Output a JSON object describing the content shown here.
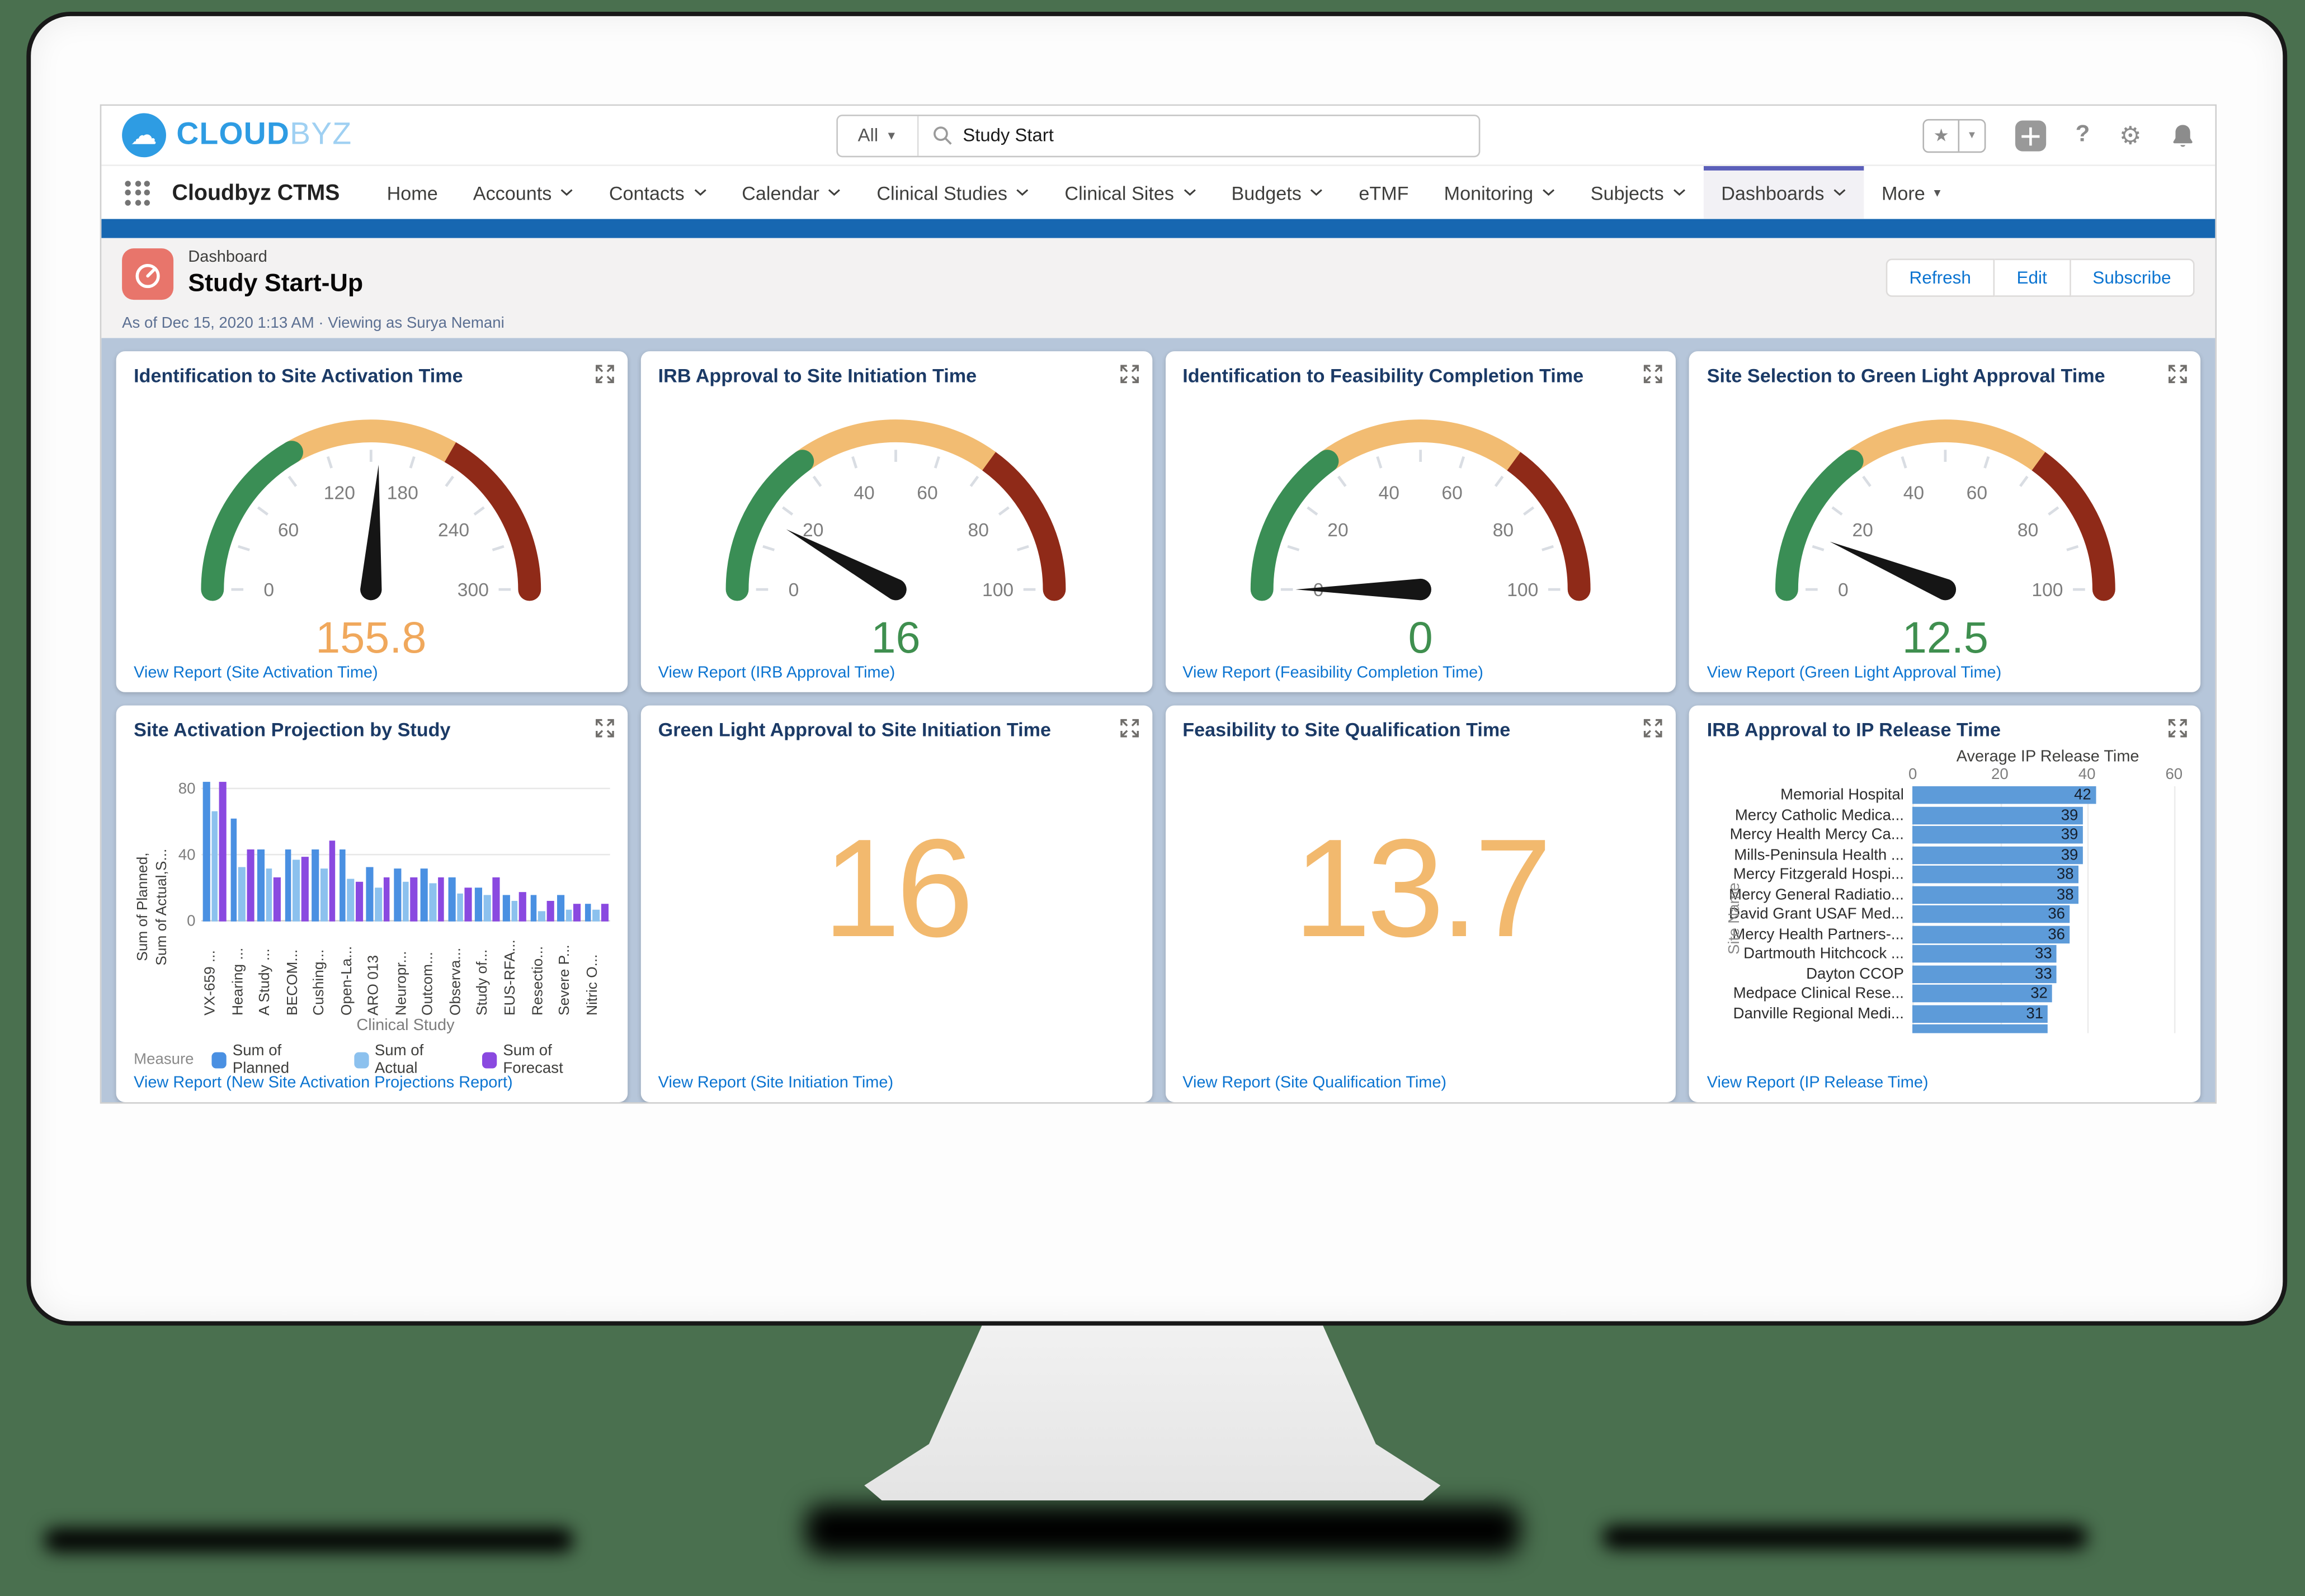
{
  "page_background": "#4a704f",
  "browser": {
    "logo": {
      "bold": "CLOUD",
      "light": "BYZ"
    },
    "search": {
      "scope": "All",
      "value": "Study Start"
    },
    "utility_icons": [
      "favorites-star",
      "add-plus",
      "help-question",
      "setup-gear",
      "notifications-bell"
    ],
    "app_name": "Cloudbyz CTMS",
    "tabs": [
      {
        "label": "Home"
      },
      {
        "label": "Accounts",
        "chevron": true
      },
      {
        "label": "Contacts",
        "chevron": true
      },
      {
        "label": "Calendar",
        "chevron": true
      },
      {
        "label": "Clinical Studies",
        "chevron": true
      },
      {
        "label": "Clinical Sites",
        "chevron": true
      },
      {
        "label": "Budgets",
        "chevron": true
      },
      {
        "label": "eTMF"
      },
      {
        "label": "Monitoring",
        "chevron": true
      },
      {
        "label": "Subjects",
        "chevron": true
      },
      {
        "label": "Dashboards",
        "chevron": true,
        "active": true
      },
      {
        "label": "More",
        "dropdown": true
      }
    ]
  },
  "dashboard_header": {
    "type_label": "Dashboard",
    "title": "Study Start-Up",
    "meta": "As of Dec 15, 2020 1:13 AM · Viewing as Surya Nemani",
    "buttons": [
      "Refresh",
      "Edit",
      "Subscribe"
    ]
  },
  "colors": {
    "brand_blue": "#1767b1",
    "active_tab_bar": "#5b5fb9",
    "dashboard_bg": "#b6c6da",
    "title_navy": "#1b3a66",
    "link_blue": "#0b74d1",
    "gauge_green": "#3a8e55",
    "gauge_orange": "#f2bc72",
    "gauge_red": "#8f2a18",
    "value_orange": "#f0a85c",
    "value_green": "#3f8f4f",
    "metric_orange": "#f2b96e",
    "bar_planned": "#4a90e2",
    "bar_actual": "#8cc1ee",
    "bar_forecast": "#8a49e0",
    "ip_bar_blue": "#5d9bd9"
  },
  "cards": {
    "gauges": [
      {
        "title": "Identification to Site Activation Time",
        "value": 155.8,
        "value_display": "155.8",
        "value_color": "#f0a85c",
        "max": 300,
        "tick_labels": [
          0,
          60,
          120,
          180,
          240,
          300
        ],
        "segments": [
          {
            "from": 0,
            "to": 100,
            "color": "#3a8e55"
          },
          {
            "from": 100,
            "to": 200,
            "color": "#f2bc72"
          },
          {
            "from": 200,
            "to": 300,
            "color": "#8f2a18"
          }
        ],
        "link": "View Report (Site Activation Time)"
      },
      {
        "title": "IRB Approval to Site Initiation Time",
        "value": 16,
        "value_display": "16",
        "value_color": "#3f8f4f",
        "max": 100,
        "tick_labels": [
          0,
          20,
          40,
          60,
          80,
          100
        ],
        "segments": [
          {
            "from": 0,
            "to": 30,
            "color": "#3a8e55"
          },
          {
            "from": 30,
            "to": 70,
            "color": "#f2bc72"
          },
          {
            "from": 70,
            "to": 100,
            "color": "#8f2a18"
          }
        ],
        "link": "View Report (IRB Approval Time)"
      },
      {
        "title": "Identification to Feasibility Completion Time",
        "value": 0,
        "value_display": "0",
        "value_color": "#3f8f4f",
        "max": 100,
        "tick_labels": [
          0,
          20,
          40,
          60,
          80,
          100
        ],
        "segments": [
          {
            "from": 0,
            "to": 30,
            "color": "#3a8e55"
          },
          {
            "from": 30,
            "to": 70,
            "color": "#f2bc72"
          },
          {
            "from": 70,
            "to": 100,
            "color": "#8f2a18"
          }
        ],
        "link": "View Report (Feasibility Completion Time)"
      },
      {
        "title": "Site Selection to Green Light Approval Time",
        "value": 12.5,
        "value_display": "12.5",
        "value_color": "#3f8f4f",
        "max": 100,
        "tick_labels": [
          0,
          20,
          40,
          60,
          80,
          100
        ],
        "segments": [
          {
            "from": 0,
            "to": 30,
            "color": "#3a8e55"
          },
          {
            "from": 30,
            "to": 70,
            "color": "#f2bc72"
          },
          {
            "from": 70,
            "to": 100,
            "color": "#8f2a18"
          }
        ],
        "link": "View Report (Green Light Approval Time)"
      }
    ],
    "projection": {
      "type": "bar",
      "title": "Site Activation Projection by Study",
      "y_label_line1": "Sum of Planned,",
      "y_label_line2": "Sum of Actual,S...",
      "y_ticks": [
        0,
        40,
        80
      ],
      "ymax": 85,
      "x_title": "Clinical Study",
      "legend_label": "Measure",
      "series": [
        {
          "name": "Sum of Planned",
          "color": "#4a90e2"
        },
        {
          "name": "Sum of Actual",
          "color": "#8cc1ee"
        },
        {
          "name": "Sum of Forecast",
          "color": "#8a49e0"
        }
      ],
      "groups": [
        {
          "label": "VX-659 ...",
          "values": [
            84,
            67,
            84
          ]
        },
        {
          "label": "Hearing ...",
          "values": [
            62,
            33,
            44
          ]
        },
        {
          "label": "A Study ...",
          "values": [
            44,
            32,
            27
          ]
        },
        {
          "label": "BECOM...",
          "values": [
            44,
            37,
            39
          ]
        },
        {
          "label": "Cushing...",
          "values": [
            44,
            32,
            49
          ]
        },
        {
          "label": "Open-La...",
          "values": [
            44,
            26,
            24
          ]
        },
        {
          "label": "ARO 013",
          "values": [
            33,
            21,
            27
          ]
        },
        {
          "label": "Neuropr...",
          "values": [
            32,
            24,
            27
          ]
        },
        {
          "label": "Outcom...",
          "values": [
            32,
            23,
            27
          ]
        },
        {
          "label": "Observa...",
          "values": [
            27,
            17,
            21
          ]
        },
        {
          "label": "Study of...",
          "values": [
            21,
            16,
            27
          ]
        },
        {
          "label": "EUS-RFA...",
          "values": [
            16,
            13,
            18
          ]
        },
        {
          "label": "Resectio...",
          "values": [
            16,
            6,
            13
          ]
        },
        {
          "label": "Severe P...",
          "values": [
            16,
            7,
            11
          ]
        },
        {
          "label": "Nitric O...",
          "values": [
            11,
            7,
            11
          ]
        }
      ],
      "link": "View Report (New Site Activation Projections Report)"
    },
    "metrics": [
      {
        "title": "Green Light Approval to Site Initiation Time",
        "value": "16",
        "link": "View Report (Site Initiation Time)"
      },
      {
        "title": "Feasibility to Site Qualification Time",
        "value": "13.7",
        "link": "View Report (Site Qualification Time)"
      }
    ],
    "ip_release": {
      "type": "bar-horizontal",
      "title": "IRB Approval to IP Release Time",
      "axis_title": "Average IP Release Time",
      "x_ticks": [
        0,
        20,
        40,
        60
      ],
      "xmax": 60,
      "y_label": "Site Name",
      "rows": [
        {
          "label": "Memorial Hospital",
          "value": 42
        },
        {
          "label": "Mercy Catholic Medica...",
          "value": 39
        },
        {
          "label": "Mercy Health Mercy Ca...",
          "value": 39
        },
        {
          "label": "Mills-Peninsula Health ...",
          "value": 39
        },
        {
          "label": "Mercy Fitzgerald Hospi...",
          "value": 38
        },
        {
          "label": "Mercy General Radiatio...",
          "value": 38
        },
        {
          "label": "David Grant USAF Med...",
          "value": 36
        },
        {
          "label": "Mercy Health Partners-...",
          "value": 36
        },
        {
          "label": "Dartmouth Hitchcock ...",
          "value": 33
        },
        {
          "label": "Dayton CCOP",
          "value": 33
        },
        {
          "label": "Medpace Clinical Rese...",
          "value": 32
        },
        {
          "label": "Danville Regional Medi...",
          "value": 31
        },
        {
          "label": "",
          "value": 31,
          "partial": true
        }
      ],
      "link": "View Report (IP Release Time)"
    }
  }
}
